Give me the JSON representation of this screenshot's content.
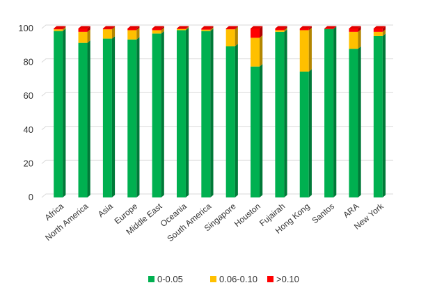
{
  "chart_data": {
    "type": "bar",
    "stacked": true,
    "three_d": true,
    "categories": [
      "Africa",
      "North America",
      "Asia",
      "Europe",
      "Middle East",
      "Oceania",
      "South America",
      "Singapore",
      "Houston",
      "Fujairah",
      "Hong Kong",
      "Santos",
      "ARA",
      "New York"
    ],
    "series": [
      {
        "name": "0-0.05",
        "color": "#00b050",
        "values": [
          98.5,
          91.5,
          94,
          93.5,
          97,
          99,
          98.5,
          89.5,
          77.5,
          98,
          74.5,
          99.7,
          88,
          95.5
        ]
      },
      {
        "name": "0.06-0.10",
        "color": "#ffc000",
        "values": [
          1,
          6.5,
          5.5,
          5.5,
          2,
          0.7,
          0.8,
          10,
          17,
          1,
          24.5,
          0,
          10,
          2.5
        ]
      },
      {
        "name": ">0.10",
        "color": "#ff0000",
        "values": [
          0.5,
          2,
          0.5,
          1,
          1,
          0.3,
          0.7,
          0.5,
          5.5,
          1,
          1,
          0.3,
          2,
          2
        ]
      }
    ],
    "yticks": [
      0,
      20,
      40,
      60,
      80,
      100
    ],
    "ylim": [
      0,
      100
    ],
    "grid": true,
    "legend_position": "bottom"
  }
}
